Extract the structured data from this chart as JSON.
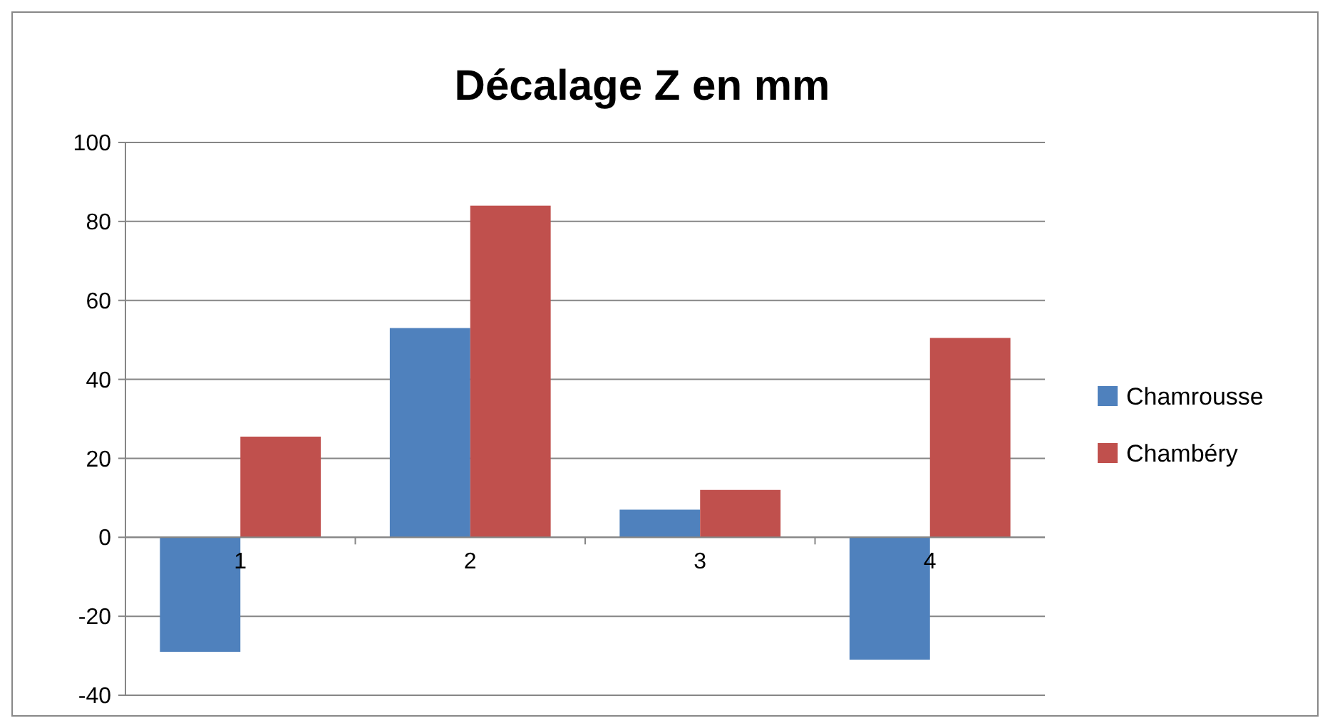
{
  "chart_data": {
    "type": "bar",
    "title": "Décalage Z en mm",
    "categories": [
      "1",
      "2",
      "3",
      "4"
    ],
    "series": [
      {
        "name": "Chamrousse",
        "color": "#4f81bd",
        "values": [
          -29,
          53,
          7,
          -31
        ]
      },
      {
        "name": "Chambéry",
        "color": "#c0504d",
        "values": [
          25.5,
          84,
          12,
          50.5
        ]
      }
    ],
    "ylim": [
      -40,
      100
    ],
    "yticks": [
      -40,
      -20,
      0,
      20,
      40,
      60,
      80,
      100
    ],
    "grid": "y",
    "legend": "right"
  }
}
